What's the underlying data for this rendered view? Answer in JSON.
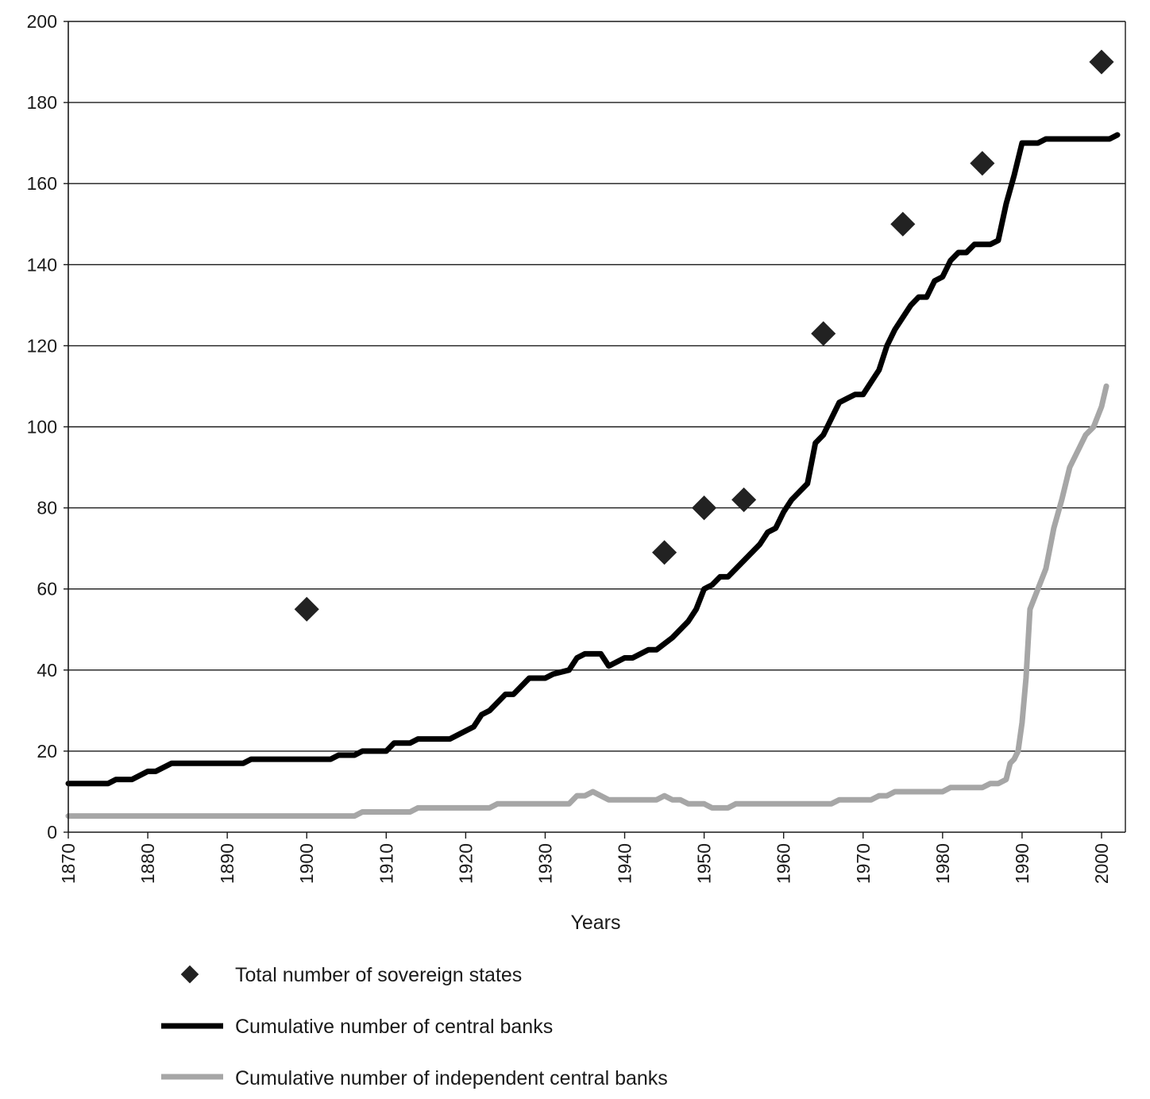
{
  "chart_data": {
    "type": "line",
    "title": "",
    "xlabel": "Years",
    "ylabel": "",
    "xlim": [
      1870,
      2003
    ],
    "ylim": [
      0,
      200
    ],
    "x_ticks": [
      1870,
      1880,
      1890,
      1900,
      1910,
      1920,
      1930,
      1940,
      1950,
      1960,
      1970,
      1980,
      1990,
      2000
    ],
    "y_ticks": [
      0,
      20,
      40,
      60,
      80,
      100,
      120,
      140,
      160,
      180,
      200
    ],
    "grid": "horizontal",
    "legend_position": "bottom",
    "colors": {
      "states": "#222222",
      "central_banks": "#000000",
      "independent_banks": "#a6a6a6"
    },
    "series": [
      {
        "name": "Total number of sovereign states",
        "kind": "scatter",
        "marker": "diamond",
        "points": [
          [
            1900,
            55
          ],
          [
            1945,
            69
          ],
          [
            1950,
            80
          ],
          [
            1955,
            82
          ],
          [
            1965,
            123
          ],
          [
            1975,
            150
          ],
          [
            1985,
            165
          ],
          [
            2000,
            190
          ]
        ]
      },
      {
        "name": "Cumulative number of central banks",
        "kind": "line",
        "points": [
          [
            1870,
            12
          ],
          [
            1875,
            12
          ],
          [
            1876,
            13
          ],
          [
            1878,
            13
          ],
          [
            1880,
            15
          ],
          [
            1881,
            15
          ],
          [
            1883,
            17
          ],
          [
            1892,
            17
          ],
          [
            1893,
            18
          ],
          [
            1903,
            18
          ],
          [
            1904,
            19
          ],
          [
            1906,
            19
          ],
          [
            1907,
            20
          ],
          [
            1910,
            20
          ],
          [
            1911,
            22
          ],
          [
            1913,
            22
          ],
          [
            1914,
            23
          ],
          [
            1918,
            23
          ],
          [
            1920,
            25
          ],
          [
            1921,
            26
          ],
          [
            1922,
            29
          ],
          [
            1923,
            30
          ],
          [
            1925,
            34
          ],
          [
            1926,
            34
          ],
          [
            1928,
            38
          ],
          [
            1930,
            38
          ],
          [
            1931,
            39
          ],
          [
            1933,
            40
          ],
          [
            1934,
            43
          ],
          [
            1935,
            44
          ],
          [
            1937,
            44
          ],
          [
            1938,
            41
          ],
          [
            1940,
            43
          ],
          [
            1941,
            43
          ],
          [
            1943,
            45
          ],
          [
            1944,
            45
          ],
          [
            1946,
            48
          ],
          [
            1948,
            52
          ],
          [
            1949,
            55
          ],
          [
            1950,
            60
          ],
          [
            1951,
            61
          ],
          [
            1952,
            63
          ],
          [
            1953,
            63
          ],
          [
            1955,
            67
          ],
          [
            1957,
            71
          ],
          [
            1958,
            74
          ],
          [
            1959,
            75
          ],
          [
            1960,
            79
          ],
          [
            1961,
            82
          ],
          [
            1963,
            86
          ],
          [
            1964,
            96
          ],
          [
            1965,
            98
          ],
          [
            1966,
            102
          ],
          [
            1967,
            106
          ],
          [
            1968,
            107
          ],
          [
            1969,
            108
          ],
          [
            1970,
            108
          ],
          [
            1971,
            111
          ],
          [
            1972,
            114
          ],
          [
            1973,
            120
          ],
          [
            1974,
            124
          ],
          [
            1975,
            127
          ],
          [
            1976,
            130
          ],
          [
            1977,
            132
          ],
          [
            1978,
            132
          ],
          [
            1979,
            136
          ],
          [
            1980,
            137
          ],
          [
            1981,
            141
          ],
          [
            1982,
            143
          ],
          [
            1983,
            143
          ],
          [
            1984,
            145
          ],
          [
            1986,
            145
          ],
          [
            1987,
            146
          ],
          [
            1988,
            155
          ],
          [
            1989,
            162
          ],
          [
            1990,
            170
          ],
          [
            1991,
            170
          ],
          [
            1992,
            170
          ],
          [
            1993,
            171
          ],
          [
            1997,
            171
          ],
          [
            1998,
            171
          ],
          [
            2000,
            171
          ],
          [
            2001,
            171
          ],
          [
            2002,
            172
          ]
        ]
      },
      {
        "name": "Cumulative number of independent central banks",
        "kind": "line",
        "points": [
          [
            1870,
            4
          ],
          [
            1906,
            4
          ],
          [
            1907,
            5
          ],
          [
            1913,
            5
          ],
          [
            1914,
            6
          ],
          [
            1923,
            6
          ],
          [
            1924,
            7
          ],
          [
            1933,
            7
          ],
          [
            1934,
            9
          ],
          [
            1935,
            9
          ],
          [
            1936,
            10
          ],
          [
            1937,
            9
          ],
          [
            1938,
            8
          ],
          [
            1944,
            8
          ],
          [
            1945,
            9
          ],
          [
            1946,
            8
          ],
          [
            1947,
            8
          ],
          [
            1948,
            7
          ],
          [
            1950,
            7
          ],
          [
            1951,
            6
          ],
          [
            1953,
            6
          ],
          [
            1954,
            7
          ],
          [
            1966,
            7
          ],
          [
            1967,
            8
          ],
          [
            1971,
            8
          ],
          [
            1972,
            9
          ],
          [
            1973,
            9
          ],
          [
            1974,
            10
          ],
          [
            1980,
            10
          ],
          [
            1981,
            11
          ],
          [
            1985,
            11
          ],
          [
            1986,
            12
          ],
          [
            1987,
            12
          ],
          [
            1988,
            13
          ],
          [
            1988.5,
            17
          ],
          [
            1989,
            18
          ],
          [
            1989.5,
            20
          ],
          [
            1990,
            27
          ],
          [
            1990.5,
            38
          ],
          [
            1991,
            55
          ],
          [
            1992,
            60
          ],
          [
            1993,
            65
          ],
          [
            1994,
            75
          ],
          [
            1995,
            82
          ],
          [
            1996,
            90
          ],
          [
            1997,
            94
          ],
          [
            1998,
            98
          ],
          [
            1999,
            100
          ],
          [
            2000,
            105
          ],
          [
            2000.6,
            110
          ]
        ]
      }
    ]
  },
  "legend": {
    "items": [
      {
        "label": "Total number of sovereign states"
      },
      {
        "label": "Cumulative number of central banks"
      },
      {
        "label": "Cumulative number of independent central banks"
      }
    ]
  }
}
